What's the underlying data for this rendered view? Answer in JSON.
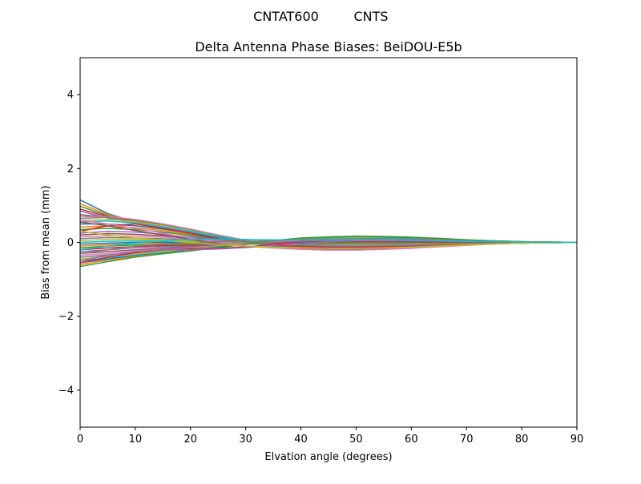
{
  "figure": {
    "suptitle_left": "CNTAT600",
    "suptitle_right": "CNTS"
  },
  "chart_data": {
    "type": "line",
    "title": "Delta Antenna Phase Biases: BeiDOU-E5b",
    "xlabel": "Elvation angle (degrees)",
    "ylabel": "Bias from mean (mm)",
    "xlim": [
      0,
      90
    ],
    "ylim": [
      -5,
      5
    ],
    "xticks": [
      0,
      10,
      20,
      30,
      40,
      50,
      60,
      70,
      80,
      90
    ],
    "yticks": [
      -4,
      -2,
      0,
      2,
      4
    ],
    "ytick_labels": [
      "−4",
      "−2",
      "0",
      "2",
      "4"
    ],
    "grid": false,
    "legend": "none",
    "palette": [
      "#1f77b4",
      "#ff7f0e",
      "#2ca02c",
      "#d62728",
      "#9467bd",
      "#8c564b",
      "#e377c2",
      "#7f7f7f",
      "#bcbd22",
      "#17becf"
    ],
    "x": [
      0,
      5,
      10,
      15,
      20,
      25,
      30,
      35,
      40,
      45,
      50,
      55,
      60,
      65,
      70,
      75,
      80,
      85,
      90
    ],
    "series": [
      {
        "values": [
          1.15,
          0.78,
          0.55,
          0.4,
          0.28,
          0.12,
          0.0,
          -0.1,
          -0.15,
          -0.17,
          -0.16,
          -0.14,
          -0.12,
          -0.08,
          -0.05,
          -0.03,
          -0.02,
          -0.01,
          0.0
        ]
      },
      {
        "values": [
          1.05,
          0.75,
          0.58,
          0.44,
          0.3,
          0.14,
          0.02,
          -0.08,
          -0.14,
          -0.16,
          -0.15,
          -0.13,
          -0.11,
          -0.08,
          -0.05,
          -0.03,
          -0.02,
          -0.01,
          0.0
        ]
      },
      {
        "values": [
          0.98,
          0.72,
          0.56,
          0.42,
          0.28,
          0.13,
          0.01,
          -0.09,
          -0.15,
          -0.18,
          -0.17,
          -0.15,
          -0.12,
          -0.09,
          -0.06,
          -0.03,
          -0.02,
          -0.01,
          0.0
        ]
      },
      {
        "values": [
          0.9,
          0.7,
          0.55,
          0.43,
          0.3,
          0.15,
          0.03,
          -0.07,
          -0.13,
          -0.16,
          -0.16,
          -0.14,
          -0.11,
          -0.08,
          -0.05,
          -0.03,
          -0.02,
          -0.01,
          0.0
        ]
      },
      {
        "values": [
          0.85,
          0.66,
          0.52,
          0.4,
          0.28,
          0.13,
          0.02,
          -0.08,
          -0.14,
          -0.17,
          -0.16,
          -0.14,
          -0.11,
          -0.08,
          -0.05,
          -0.03,
          -0.02,
          -0.01,
          0.0
        ]
      },
      {
        "values": [
          0.75,
          0.68,
          0.6,
          0.48,
          0.34,
          0.18,
          0.04,
          -0.06,
          -0.12,
          -0.15,
          -0.15,
          -0.13,
          -0.1,
          -0.07,
          -0.05,
          -0.03,
          -0.02,
          -0.01,
          0.0
        ]
      },
      {
        "values": [
          0.7,
          0.7,
          0.62,
          0.5,
          0.36,
          0.2,
          0.06,
          -0.05,
          -0.12,
          -0.16,
          -0.16,
          -0.14,
          -0.11,
          -0.08,
          -0.05,
          -0.03,
          -0.02,
          -0.01,
          0.0
        ]
      },
      {
        "values": [
          0.65,
          0.68,
          0.6,
          0.48,
          0.34,
          0.19,
          0.05,
          -0.06,
          -0.13,
          -0.17,
          -0.17,
          -0.15,
          -0.12,
          -0.08,
          -0.05,
          -0.03,
          -0.02,
          -0.01,
          0.0
        ]
      },
      {
        "values": [
          0.6,
          0.62,
          0.56,
          0.45,
          0.32,
          0.17,
          0.04,
          -0.06,
          -0.12,
          -0.15,
          -0.15,
          -0.13,
          -0.1,
          -0.07,
          -0.05,
          -0.03,
          -0.02,
          -0.01,
          0.0
        ]
      },
      {
        "values": [
          0.55,
          0.58,
          0.52,
          0.42,
          0.3,
          0.16,
          0.04,
          -0.05,
          -0.11,
          -0.14,
          -0.14,
          -0.12,
          -0.1,
          -0.07,
          -0.04,
          -0.02,
          -0.01,
          -0.005,
          0.0
        ]
      },
      {
        "values": [
          0.5,
          0.5,
          0.45,
          0.36,
          0.25,
          0.13,
          0.03,
          -0.05,
          -0.1,
          -0.13,
          -0.13,
          -0.12,
          -0.09,
          -0.06,
          -0.04,
          -0.02,
          -0.01,
          -0.005,
          0.0
        ]
      },
      {
        "values": [
          0.42,
          0.44,
          0.4,
          0.32,
          0.22,
          0.11,
          0.02,
          -0.05,
          -0.1,
          -0.12,
          -0.12,
          -0.11,
          -0.09,
          -0.06,
          -0.04,
          -0.02,
          -0.01,
          -0.005,
          0.0
        ]
      },
      {
        "values": [
          0.35,
          0.38,
          0.35,
          0.28,
          0.19,
          0.09,
          0.01,
          -0.05,
          -0.09,
          -0.11,
          -0.11,
          -0.1,
          -0.08,
          -0.06,
          -0.04,
          -0.02,
          -0.01,
          -0.005,
          0.0
        ]
      },
      {
        "values": [
          0.3,
          0.45,
          0.5,
          0.38,
          0.24,
          0.1,
          0.0,
          -0.07,
          -0.11,
          -0.13,
          -0.13,
          -0.11,
          -0.09,
          -0.06,
          -0.04,
          -0.02,
          -0.01,
          -0.005,
          0.0
        ]
      },
      {
        "values": [
          0.25,
          0.3,
          0.28,
          0.22,
          0.15,
          0.07,
          0.0,
          -0.05,
          -0.08,
          -0.1,
          -0.1,
          -0.09,
          -0.07,
          -0.05,
          -0.03,
          -0.02,
          -0.01,
          -0.005,
          0.0
        ]
      },
      {
        "values": [
          0.2,
          0.24,
          0.22,
          0.18,
          0.12,
          0.05,
          0.0,
          -0.04,
          -0.07,
          -0.09,
          -0.09,
          -0.08,
          -0.06,
          -0.04,
          -0.03,
          -0.02,
          -0.01,
          -0.005,
          0.0
        ]
      },
      {
        "values": [
          0.15,
          0.18,
          0.17,
          0.14,
          0.09,
          0.04,
          -0.01,
          -0.04,
          -0.06,
          -0.08,
          -0.08,
          -0.07,
          -0.06,
          -0.04,
          -0.03,
          -0.02,
          -0.01,
          -0.005,
          0.0
        ]
      },
      {
        "values": [
          0.1,
          0.13,
          0.12,
          0.1,
          0.06,
          0.02,
          -0.02,
          -0.04,
          -0.06,
          -0.07,
          -0.07,
          -0.06,
          -0.05,
          -0.04,
          -0.02,
          -0.01,
          -0.01,
          -0.005,
          0.0
        ]
      },
      {
        "values": [
          0.05,
          0.08,
          0.08,
          0.06,
          0.03,
          0.0,
          -0.03,
          -0.05,
          -0.06,
          -0.06,
          -0.06,
          -0.05,
          -0.04,
          -0.03,
          -0.02,
          -0.01,
          -0.005,
          0.0,
          0.0
        ]
      },
      {
        "values": [
          0.0,
          0.03,
          0.04,
          0.03,
          0.01,
          -0.02,
          -0.04,
          -0.05,
          -0.05,
          -0.05,
          -0.05,
          -0.04,
          -0.03,
          -0.02,
          -0.01,
          -0.01,
          -0.005,
          0.0,
          0.0
        ]
      },
      {
        "values": [
          -0.05,
          -0.02,
          0.0,
          0.0,
          -0.01,
          -0.03,
          -0.04,
          -0.04,
          -0.04,
          -0.04,
          -0.03,
          -0.03,
          -0.02,
          -0.02,
          -0.01,
          -0.005,
          0.0,
          0.0,
          0.0
        ]
      },
      {
        "values": [
          -0.1,
          -0.06,
          -0.03,
          -0.03,
          -0.03,
          -0.04,
          -0.04,
          -0.03,
          -0.02,
          -0.02,
          -0.02,
          -0.02,
          -0.01,
          -0.01,
          -0.005,
          0.0,
          0.0,
          0.0,
          0.0
        ]
      },
      {
        "values": [
          -0.15,
          -0.1,
          -0.07,
          -0.06,
          -0.05,
          -0.05,
          -0.04,
          -0.02,
          -0.01,
          0.0,
          0.0,
          0.0,
          0.0,
          0.0,
          0.0,
          0.0,
          0.0,
          0.0,
          0.0
        ]
      },
      {
        "values": [
          -0.2,
          -0.15,
          -0.11,
          -0.09,
          -0.08,
          -0.06,
          -0.04,
          -0.01,
          0.01,
          0.02,
          0.02,
          0.02,
          0.02,
          0.01,
          0.01,
          0.005,
          0.0,
          0.0,
          0.0
        ]
      },
      {
        "values": [
          -0.25,
          -0.2,
          -0.15,
          -0.12,
          -0.1,
          -0.07,
          -0.04,
          0.0,
          0.03,
          0.04,
          0.05,
          0.04,
          0.04,
          0.03,
          0.02,
          0.01,
          0.005,
          0.0,
          0.0
        ]
      },
      {
        "values": [
          -0.3,
          -0.25,
          -0.2,
          -0.16,
          -0.12,
          -0.08,
          -0.03,
          0.01,
          0.05,
          0.07,
          0.08,
          0.07,
          0.06,
          0.05,
          0.03,
          0.02,
          0.01,
          0.005,
          0.0
        ]
      },
      {
        "values": [
          -0.35,
          -0.3,
          -0.24,
          -0.19,
          -0.14,
          -0.09,
          -0.03,
          0.02,
          0.06,
          0.09,
          0.1,
          0.09,
          0.08,
          0.06,
          0.04,
          0.02,
          0.01,
          0.005,
          0.0
        ]
      },
      {
        "values": [
          -0.4,
          -0.34,
          -0.28,
          -0.22,
          -0.16,
          -0.1,
          -0.03,
          0.03,
          0.08,
          0.11,
          0.12,
          0.11,
          0.1,
          0.07,
          0.05,
          0.03,
          0.01,
          0.005,
          0.0
        ]
      },
      {
        "values": [
          -0.45,
          -0.38,
          -0.31,
          -0.24,
          -0.18,
          -0.11,
          -0.03,
          0.04,
          0.09,
          0.12,
          0.13,
          0.13,
          0.11,
          0.08,
          0.05,
          0.03,
          0.02,
          0.01,
          0.0
        ]
      },
      {
        "values": [
          -0.5,
          -0.42,
          -0.34,
          -0.27,
          -0.2,
          -0.12,
          -0.04,
          0.04,
          0.1,
          0.13,
          0.15,
          0.14,
          0.12,
          0.09,
          0.06,
          0.03,
          0.02,
          0.01,
          0.0
        ]
      },
      {
        "values": [
          -0.55,
          -0.45,
          -0.36,
          -0.29,
          -0.21,
          -0.13,
          -0.04,
          0.05,
          0.11,
          0.14,
          0.16,
          0.15,
          0.13,
          0.1,
          0.06,
          0.04,
          0.02,
          0.01,
          0.0
        ]
      },
      {
        "values": [
          -0.6,
          -0.48,
          -0.38,
          -0.3,
          -0.22,
          -0.14,
          -0.05,
          0.05,
          0.11,
          0.15,
          0.16,
          0.16,
          0.14,
          0.1,
          0.07,
          0.04,
          0.02,
          0.01,
          0.0
        ]
      },
      {
        "values": [
          -0.65,
          -0.52,
          -0.4,
          -0.31,
          -0.23,
          -0.14,
          -0.05,
          0.05,
          0.12,
          0.15,
          0.17,
          0.16,
          0.14,
          0.11,
          0.07,
          0.04,
          0.02,
          0.01,
          0.0
        ]
      },
      {
        "values": [
          -0.55,
          -0.4,
          -0.28,
          -0.2,
          -0.18,
          -0.16,
          -0.12,
          -0.06,
          0.0,
          0.04,
          0.06,
          0.06,
          0.05,
          0.04,
          0.03,
          0.02,
          0.01,
          0.005,
          0.0
        ]
      },
      {
        "values": [
          -0.5,
          -0.35,
          -0.25,
          -0.2,
          -0.2,
          -0.18,
          -0.14,
          -0.08,
          -0.02,
          0.02,
          0.04,
          0.05,
          0.05,
          0.04,
          0.03,
          0.02,
          0.01,
          0.005,
          0.0
        ]
      },
      {
        "values": [
          0.55,
          0.45,
          0.32,
          0.2,
          0.08,
          -0.03,
          -0.1,
          -0.15,
          -0.18,
          -0.2,
          -0.2,
          -0.18,
          -0.15,
          -0.11,
          -0.07,
          -0.04,
          -0.02,
          -0.01,
          0.0
        ]
      },
      {
        "values": [
          0.6,
          0.5,
          0.38,
          0.25,
          0.12,
          0.0,
          -0.09,
          -0.15,
          -0.19,
          -0.21,
          -0.21,
          -0.19,
          -0.16,
          -0.12,
          -0.08,
          -0.04,
          -0.02,
          -0.01,
          0.0
        ]
      },
      {
        "values": [
          -0.3,
          -0.2,
          -0.1,
          -0.04,
          0.0,
          0.02,
          0.03,
          0.05,
          0.07,
          0.09,
          0.1,
          0.1,
          0.09,
          0.07,
          0.05,
          0.03,
          0.01,
          0.005,
          0.0
        ]
      },
      {
        "values": [
          0.3,
          0.2,
          0.12,
          0.06,
          0.0,
          -0.06,
          -0.1,
          -0.13,
          -0.15,
          -0.16,
          -0.16,
          -0.15,
          -0.13,
          -0.1,
          -0.07,
          -0.04,
          -0.02,
          -0.01,
          0.0
        ]
      },
      {
        "values": [
          -0.2,
          -0.1,
          -0.02,
          0.04,
          0.08,
          0.09,
          0.08,
          0.07,
          0.06,
          0.06,
          0.07,
          0.07,
          0.06,
          0.05,
          0.03,
          0.02,
          0.01,
          0.005,
          0.0
        ]
      }
    ]
  }
}
